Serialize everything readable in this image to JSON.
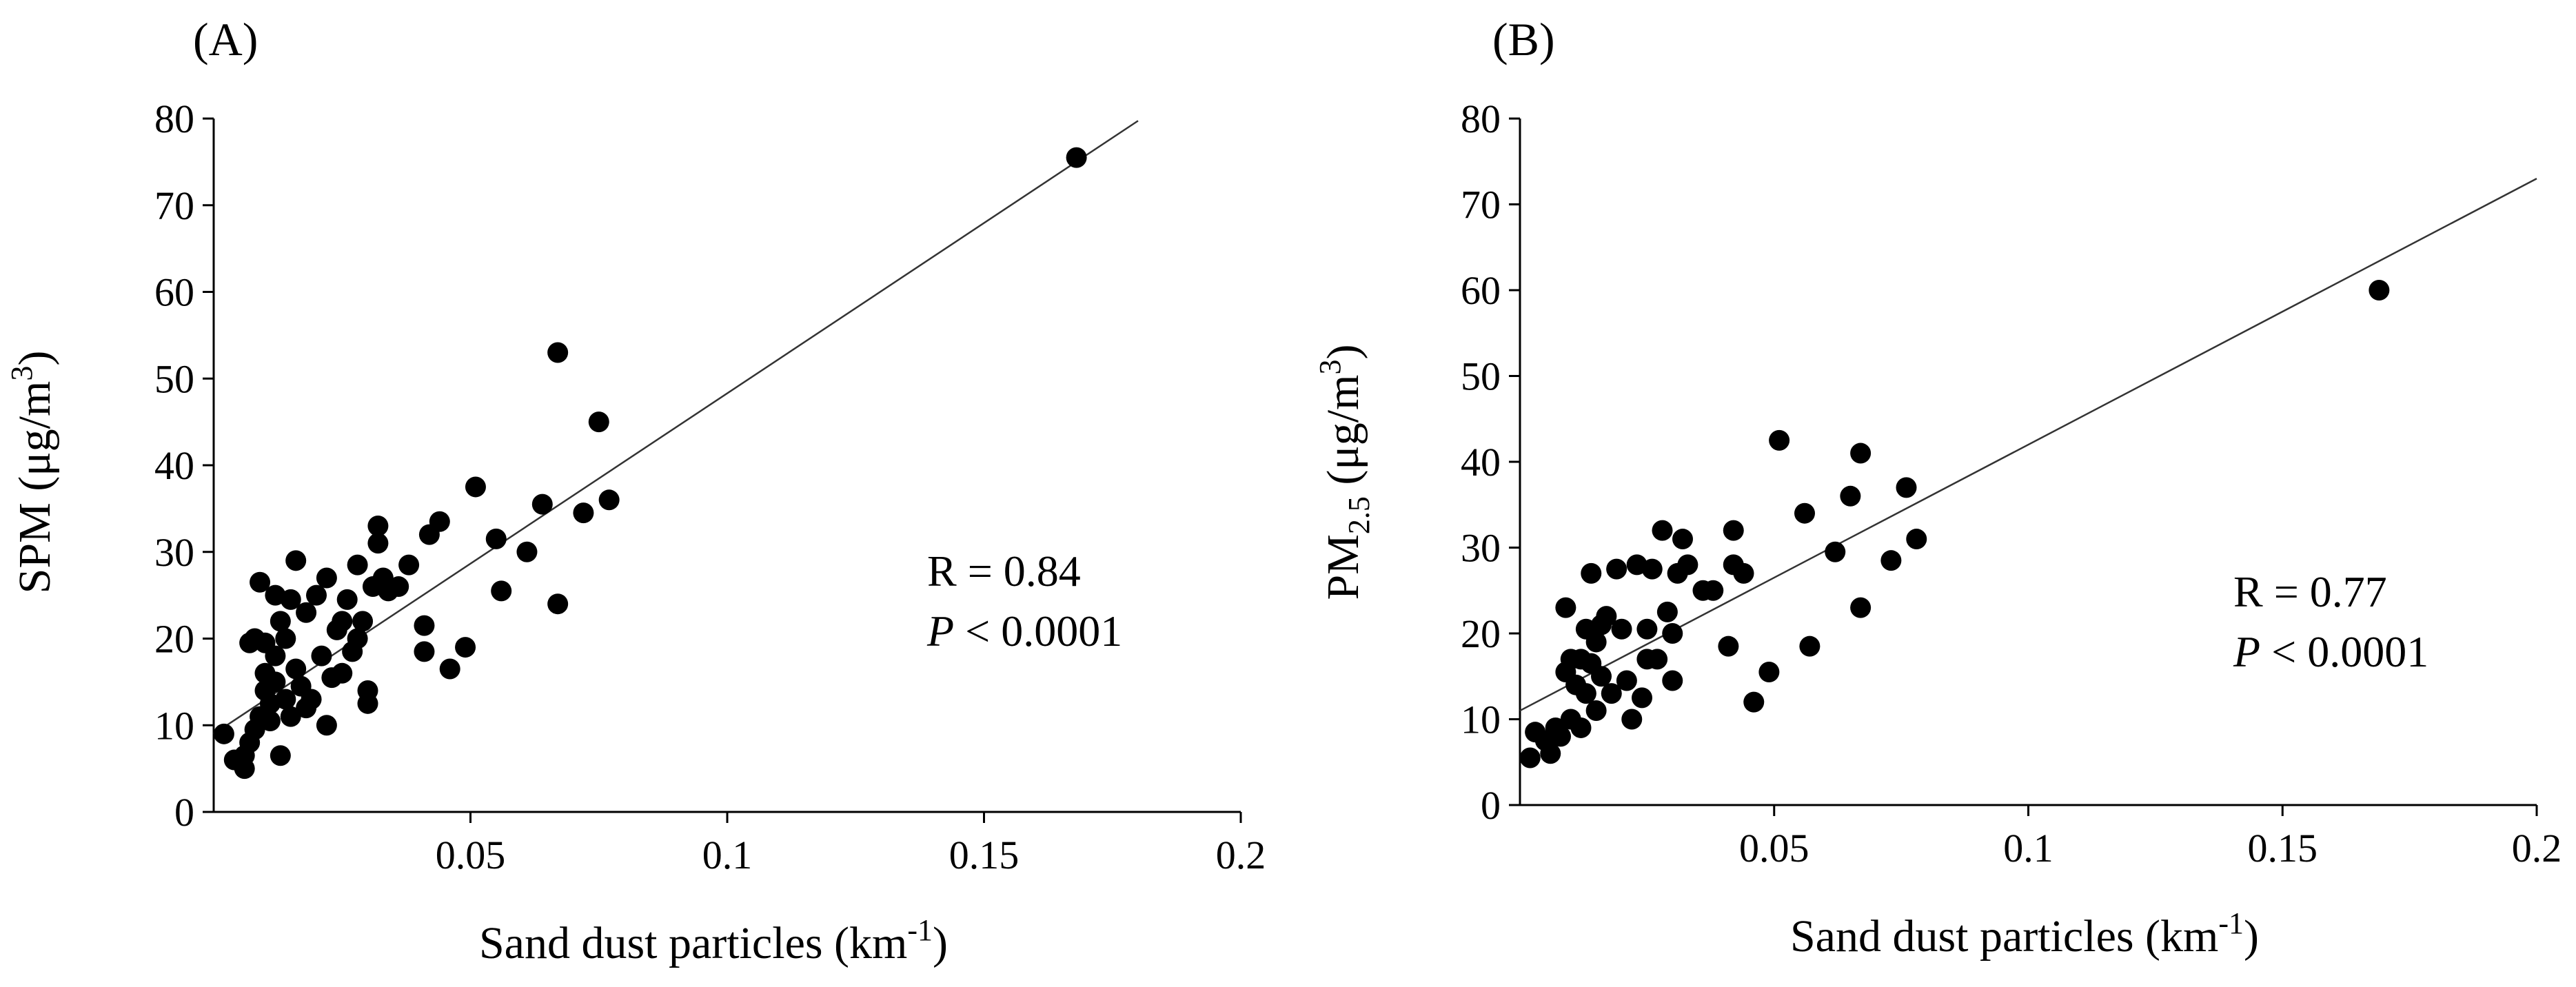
{
  "chart_data": [
    {
      "type": "scatter",
      "panel_label": "(A)",
      "ylabel_main": "SPM (μg/m",
      "ylabel_sup": "3",
      "ylabel_end": ")",
      "xlabel_main": "Sand dust particles  (km",
      "xlabel_sup": "-1",
      "xlabel_end": ")",
      "xlim": [
        0,
        0.2
      ],
      "ylim": [
        0,
        80
      ],
      "xticks": [
        0.05,
        0.1,
        0.15,
        0.2
      ],
      "xtick_labels": [
        "0.05",
        "0.1",
        "0.15",
        "0.2"
      ],
      "yticks": [
        0,
        10,
        20,
        30,
        40,
        50,
        60,
        70,
        80
      ],
      "ytick_labels": [
        "0",
        "10",
        "20",
        "30",
        "40",
        "50",
        "60",
        "70",
        "80"
      ],
      "stat_r": "R = 0.84",
      "stat_p_symbol": "P",
      "stat_p_value": " < 0.0001",
      "regression": {
        "x_start": 0.0,
        "x_end": 0.18,
        "intercept": 9.0,
        "slope": 393
      },
      "points": [
        [
          0.168,
          75.5
        ],
        [
          0.067,
          53
        ],
        [
          0.075,
          45
        ],
        [
          0.077,
          36
        ],
        [
          0.072,
          34.5
        ],
        [
          0.064,
          35.5
        ],
        [
          0.061,
          30
        ],
        [
          0.067,
          24
        ],
        [
          0.056,
          25.5
        ],
        [
          0.055,
          31.5
        ],
        [
          0.051,
          37.5
        ],
        [
          0.049,
          19
        ],
        [
          0.046,
          16.5
        ],
        [
          0.044,
          33.5
        ],
        [
          0.042,
          32
        ],
        [
          0.041,
          18.5
        ],
        [
          0.041,
          21.5
        ],
        [
          0.038,
          28.5
        ],
        [
          0.036,
          26
        ],
        [
          0.034,
          25.5
        ],
        [
          0.033,
          27
        ],
        [
          0.032,
          33
        ],
        [
          0.032,
          31
        ],
        [
          0.031,
          26
        ],
        [
          0.03,
          14
        ],
        [
          0.03,
          12.5
        ],
        [
          0.029,
          22
        ],
        [
          0.028,
          20
        ],
        [
          0.028,
          28.5
        ],
        [
          0.027,
          18.5
        ],
        [
          0.026,
          24.5
        ],
        [
          0.025,
          22
        ],
        [
          0.025,
          16
        ],
        [
          0.024,
          21
        ],
        [
          0.023,
          15.5
        ],
        [
          0.022,
          27
        ],
        [
          0.022,
          10
        ],
        [
          0.021,
          18
        ],
        [
          0.02,
          25
        ],
        [
          0.019,
          13
        ],
        [
          0.018,
          23
        ],
        [
          0.018,
          12
        ],
        [
          0.017,
          14.5
        ],
        [
          0.016,
          29
        ],
        [
          0.016,
          16.5
        ],
        [
          0.015,
          24.5
        ],
        [
          0.015,
          11
        ],
        [
          0.014,
          20
        ],
        [
          0.014,
          13
        ],
        [
          0.013,
          22
        ],
        [
          0.013,
          6.5
        ],
        [
          0.012,
          25
        ],
        [
          0.012,
          18
        ],
        [
          0.012,
          15
        ],
        [
          0.011,
          10.5
        ],
        [
          0.011,
          12.5
        ],
        [
          0.01,
          16
        ],
        [
          0.01,
          14
        ],
        [
          0.01,
          19.5
        ],
        [
          0.009,
          26.5
        ],
        [
          0.009,
          11
        ],
        [
          0.008,
          20
        ],
        [
          0.008,
          9.5
        ],
        [
          0.007,
          8
        ],
        [
          0.007,
          19.5
        ],
        [
          0.006,
          6.5
        ],
        [
          0.006,
          5
        ],
        [
          0.004,
          6
        ],
        [
          0.002,
          9
        ]
      ]
    },
    {
      "type": "scatter",
      "panel_label": "(B)",
      "ylabel_main": "PM",
      "ylabel_sub": "2.5",
      "ylabel_rest": " (μg/m",
      "ylabel_sup": "3",
      "ylabel_end": ")",
      "xlabel_main": "Sand dust particles  (km",
      "xlabel_sup": "-1",
      "xlabel_end": ")",
      "xlim": [
        0,
        0.2
      ],
      "ylim": [
        0,
        80
      ],
      "xticks": [
        0.05,
        0.1,
        0.15,
        0.2
      ],
      "xtick_labels": [
        "0.05",
        "0.1",
        "0.15",
        "0.2"
      ],
      "yticks": [
        0,
        10,
        20,
        30,
        40,
        50,
        60,
        70,
        80
      ],
      "ytick_labels": [
        "0",
        "10",
        "20",
        "30",
        "40",
        "50",
        "60",
        "70",
        "80"
      ],
      "stat_r": "R = 0.77",
      "stat_p_symbol": "P",
      "stat_p_value": " < 0.0001",
      "regression": {
        "x_start": 0.0,
        "x_end": 0.2,
        "intercept": 11.0,
        "slope": 310
      },
      "points": [
        [
          0.169,
          60
        ],
        [
          0.067,
          41
        ],
        [
          0.076,
          37
        ],
        [
          0.078,
          31
        ],
        [
          0.073,
          28.5
        ],
        [
          0.065,
          36
        ],
        [
          0.062,
          29.5
        ],
        [
          0.067,
          23
        ],
        [
          0.057,
          18.5
        ],
        [
          0.056,
          34
        ],
        [
          0.051,
          42.5
        ],
        [
          0.049,
          15.5
        ],
        [
          0.046,
          12
        ],
        [
          0.044,
          27
        ],
        [
          0.042,
          32
        ],
        [
          0.041,
          18.5
        ],
        [
          0.042,
          28
        ],
        [
          0.038,
          25
        ],
        [
          0.036,
          25
        ],
        [
          0.033,
          28
        ],
        [
          0.032,
          31
        ],
        [
          0.031,
          27
        ],
        [
          0.03,
          20
        ],
        [
          0.03,
          14.5
        ],
        [
          0.029,
          22.5
        ],
        [
          0.028,
          32
        ],
        [
          0.027,
          17
        ],
        [
          0.026,
          27.5
        ],
        [
          0.025,
          20.5
        ],
        [
          0.025,
          17
        ],
        [
          0.024,
          12.5
        ],
        [
          0.023,
          28
        ],
        [
          0.022,
          10
        ],
        [
          0.021,
          14.5
        ],
        [
          0.02,
          20.5
        ],
        [
          0.019,
          27.5
        ],
        [
          0.018,
          13
        ],
        [
          0.017,
          22
        ],
        [
          0.016,
          15
        ],
        [
          0.016,
          21
        ],
        [
          0.015,
          19
        ],
        [
          0.015,
          11
        ],
        [
          0.014,
          27
        ],
        [
          0.014,
          16.5
        ],
        [
          0.013,
          13
        ],
        [
          0.013,
          20.5
        ],
        [
          0.012,
          9
        ],
        [
          0.012,
          17
        ],
        [
          0.011,
          14
        ],
        [
          0.01,
          17
        ],
        [
          0.01,
          10
        ],
        [
          0.009,
          23
        ],
        [
          0.009,
          15.5
        ],
        [
          0.008,
          8
        ],
        [
          0.007,
          9
        ],
        [
          0.006,
          6
        ],
        [
          0.005,
          7.5
        ],
        [
          0.003,
          8.5
        ],
        [
          0.002,
          5.5
        ]
      ]
    }
  ]
}
